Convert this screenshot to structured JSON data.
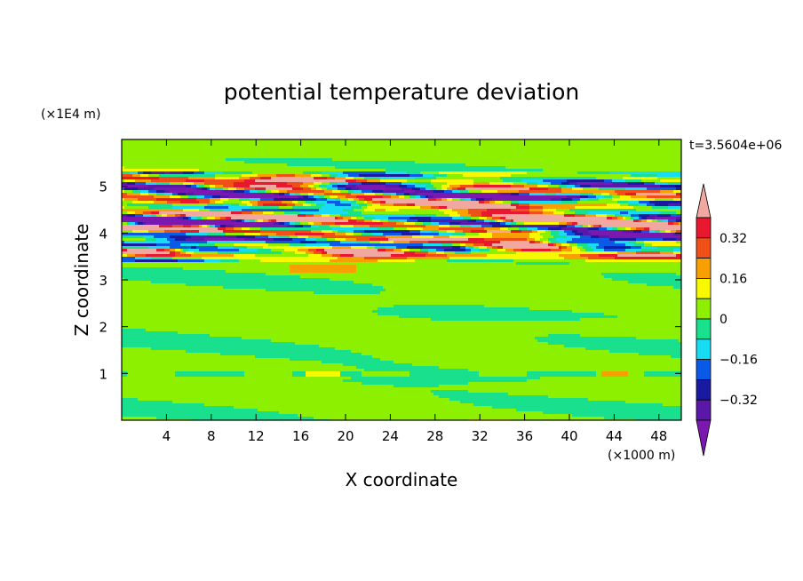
{
  "chart_data": {
    "type": "heatmap",
    "title": "potential temperature deviation",
    "xlabel": "X coordinate",
    "ylabel": "Z coordinate",
    "x_unit": "(×1000 m)",
    "y_unit": "(×1E4 m)",
    "time_label": "t=3.5604e+06",
    "xlim": [
      0,
      50
    ],
    "ylim": [
      0,
      6
    ],
    "x_ticks": [
      "4",
      "8",
      "12",
      "16",
      "20",
      "24",
      "28",
      "32",
      "36",
      "40",
      "44",
      "48"
    ],
    "y_ticks": [
      "1",
      "2",
      "3",
      "4",
      "5"
    ],
    "colorbar": {
      "tick_labels": [
        "0.32",
        "0.16",
        "0",
        "-0.16",
        "-0.32"
      ],
      "levels": [
        -0.4,
        -0.32,
        -0.24,
        -0.16,
        -0.08,
        0,
        0.08,
        0.16,
        0.24,
        0.32,
        0.4
      ],
      "colors": [
        "#7b18b0",
        "#5a18a8",
        "#1a1aa0",
        "#0a5ae8",
        "#18dcf4",
        "#18e08c",
        "#8cf000",
        "#f8f800",
        "#f8a000",
        "#f05018",
        "#e81830",
        "#f0a8a0"
      ]
    },
    "bands": [
      {
        "z_range": [
          0,
          1
        ],
        "pattern": "mostly green (0 to 0.08) with teal patches (-0.08 to 0)"
      },
      {
        "z_range": [
          1,
          3.4
        ],
        "pattern": "alternating green and teal layers with small yellow spots"
      },
      {
        "z_range": [
          3.4,
          5.3
        ],
        "pattern": "strong alternating layers of purple, blue, red and pink"
      },
      {
        "z_range": [
          5.3,
          6
        ],
        "pattern": "mostly green"
      }
    ]
  }
}
